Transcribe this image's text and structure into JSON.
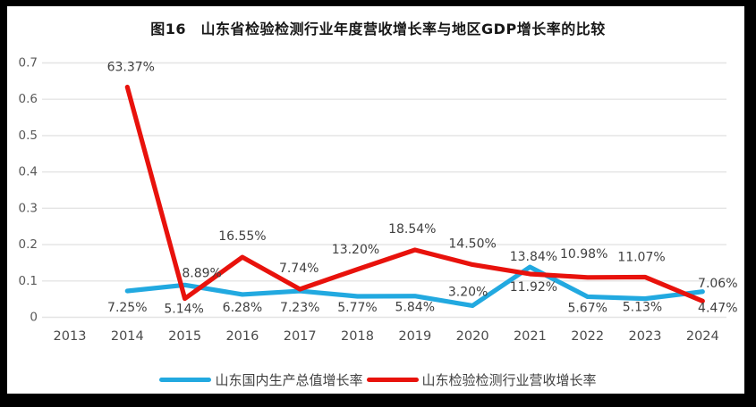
{
  "page": {
    "background_color": "#000000",
    "card_background_color": "#ffffff"
  },
  "title": "图16　山东省检验检测行业年度营收增长率与地区GDP增长率的比较",
  "chart_data": {
    "type": "line",
    "title": "图16　山东省检验检测行业年度营收增长率与地区GDP增长率的比较",
    "categories": [
      "2013",
      "2014",
      "2015",
      "2016",
      "2017",
      "2018",
      "2019",
      "2020",
      "2021",
      "2022",
      "2023",
      "2024"
    ],
    "series": [
      {
        "name": "山东国内生产总值增长率",
        "color": "#22A9E0",
        "values": [
          null,
          0.0725,
          0.0889,
          0.0628,
          0.0723,
          0.0577,
          0.0584,
          0.032,
          0.1384,
          0.0567,
          0.0513,
          0.0706
        ],
        "labels": [
          null,
          "7.25%",
          "8.89%",
          "6.28%",
          "7.23%",
          "5.77%",
          "5.84%",
          "3.20%",
          "13.84%",
          "5.67%",
          "5.13%",
          "7.06%"
        ]
      },
      {
        "name": "山东检验检测行业营收增长率",
        "color": "#E8120C",
        "values": [
          null,
          0.6337,
          0.0514,
          0.1655,
          0.0774,
          0.132,
          0.1854,
          0.145,
          0.1192,
          0.1098,
          0.1107,
          0.0447
        ],
        "labels": [
          null,
          "63.37%",
          "5.14%",
          "16.55%",
          "7.74%",
          "13.20%",
          "18.54%",
          "14.50%",
          "11.92%",
          "10.98%",
          "11.07%",
          "4.47%"
        ]
      }
    ],
    "ylim": [
      0,
      0.7
    ],
    "yticks": [
      "0.7",
      "0.6",
      "0.5",
      "0.4",
      "0.3",
      "0.2",
      "0.1",
      "0"
    ],
    "grid": true,
    "legend_position": "bottom",
    "gridline_color": "#E4E4E4",
    "ytick_color": "#595959",
    "xtick_color": "#4a4a4a",
    "data_label_color": "#3F3F3F"
  }
}
